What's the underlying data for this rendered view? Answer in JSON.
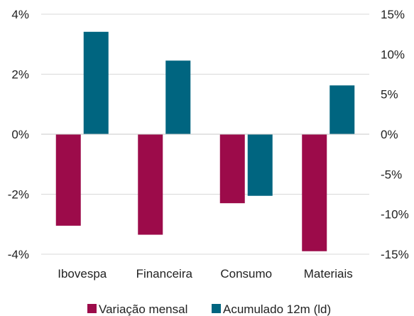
{
  "chart_data": {
    "type": "bar",
    "categories": [
      "Ibovespa",
      "Financeira",
      "Consumo",
      "Materiais"
    ],
    "series": [
      {
        "name": "Variação mensal",
        "axis": "left",
        "color": "#9c0b4a",
        "values": [
          -3.05,
          -3.35,
          -2.3,
          -3.9
        ]
      },
      {
        "name": "Acumulado 12m (ld)",
        "axis": "right",
        "color": "#006580",
        "values": [
          12.8,
          9.2,
          -7.7,
          6.1
        ]
      }
    ],
    "y_left": {
      "min": -4,
      "max": 4,
      "ticks": [
        4,
        2,
        0,
        -2,
        -4
      ],
      "tick_labels": [
        "4%",
        "2%",
        "0%",
        "-2%",
        "-4%"
      ]
    },
    "y_right": {
      "min": -15,
      "max": 15,
      "ticks": [
        15,
        10,
        5,
        0,
        -5,
        -10,
        -15
      ],
      "tick_labels": [
        "15%",
        "10%",
        "5%",
        "0%",
        "-5%",
        "-10%",
        "-15%"
      ]
    },
    "grid": true,
    "legend_position": "bottom"
  }
}
